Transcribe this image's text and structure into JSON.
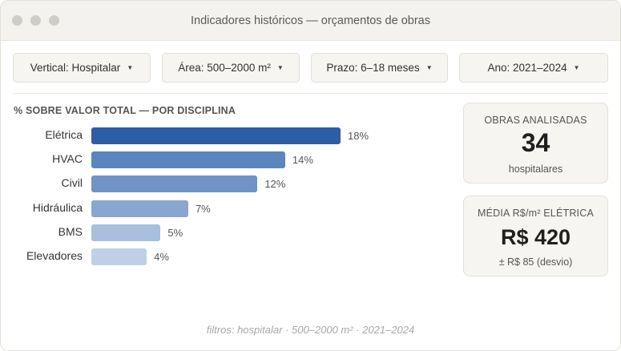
{
  "window": {
    "title": "Indicadores históricos — orçamentos de obras"
  },
  "filters": [
    {
      "label": "Vertical: Hospitalar"
    },
    {
      "label": "Área: 500–2000 m²"
    },
    {
      "label": "Prazo: 6–18 meses"
    },
    {
      "label": "Ano: 2021–2024"
    }
  ],
  "chart_data": {
    "type": "bar",
    "orientation": "horizontal",
    "title": "% SOBRE VALOR TOTAL — POR DISCIPLINA",
    "categories": [
      "Elétrica",
      "HVAC",
      "Civil",
      "Hidráulica",
      "BMS",
      "Elevadores"
    ],
    "values": [
      18,
      14,
      12,
      7,
      5,
      4
    ],
    "value_labels": [
      "18%",
      "14%",
      "12%",
      "7%",
      "5%",
      "4%"
    ],
    "unit": "%",
    "xlim": [
      0,
      18
    ],
    "colors": [
      "#2c5ea6",
      "#5b86bd",
      "#6f93c4",
      "#89a6cf",
      "#a8bfdd",
      "#bfd0e6"
    ],
    "grid": false,
    "legend": "none"
  },
  "cards": {
    "obras": {
      "label": "OBRAS ANALISADAS",
      "value": "34",
      "sub": "hospitalares"
    },
    "media": {
      "label": "MÉDIA R$/m² ELÉTRICA",
      "value": "R$ 420",
      "sub": "± R$ 85 (desvio)"
    }
  },
  "footer": "filtros: hospitalar · 500–2000 m² · 2021–2024"
}
